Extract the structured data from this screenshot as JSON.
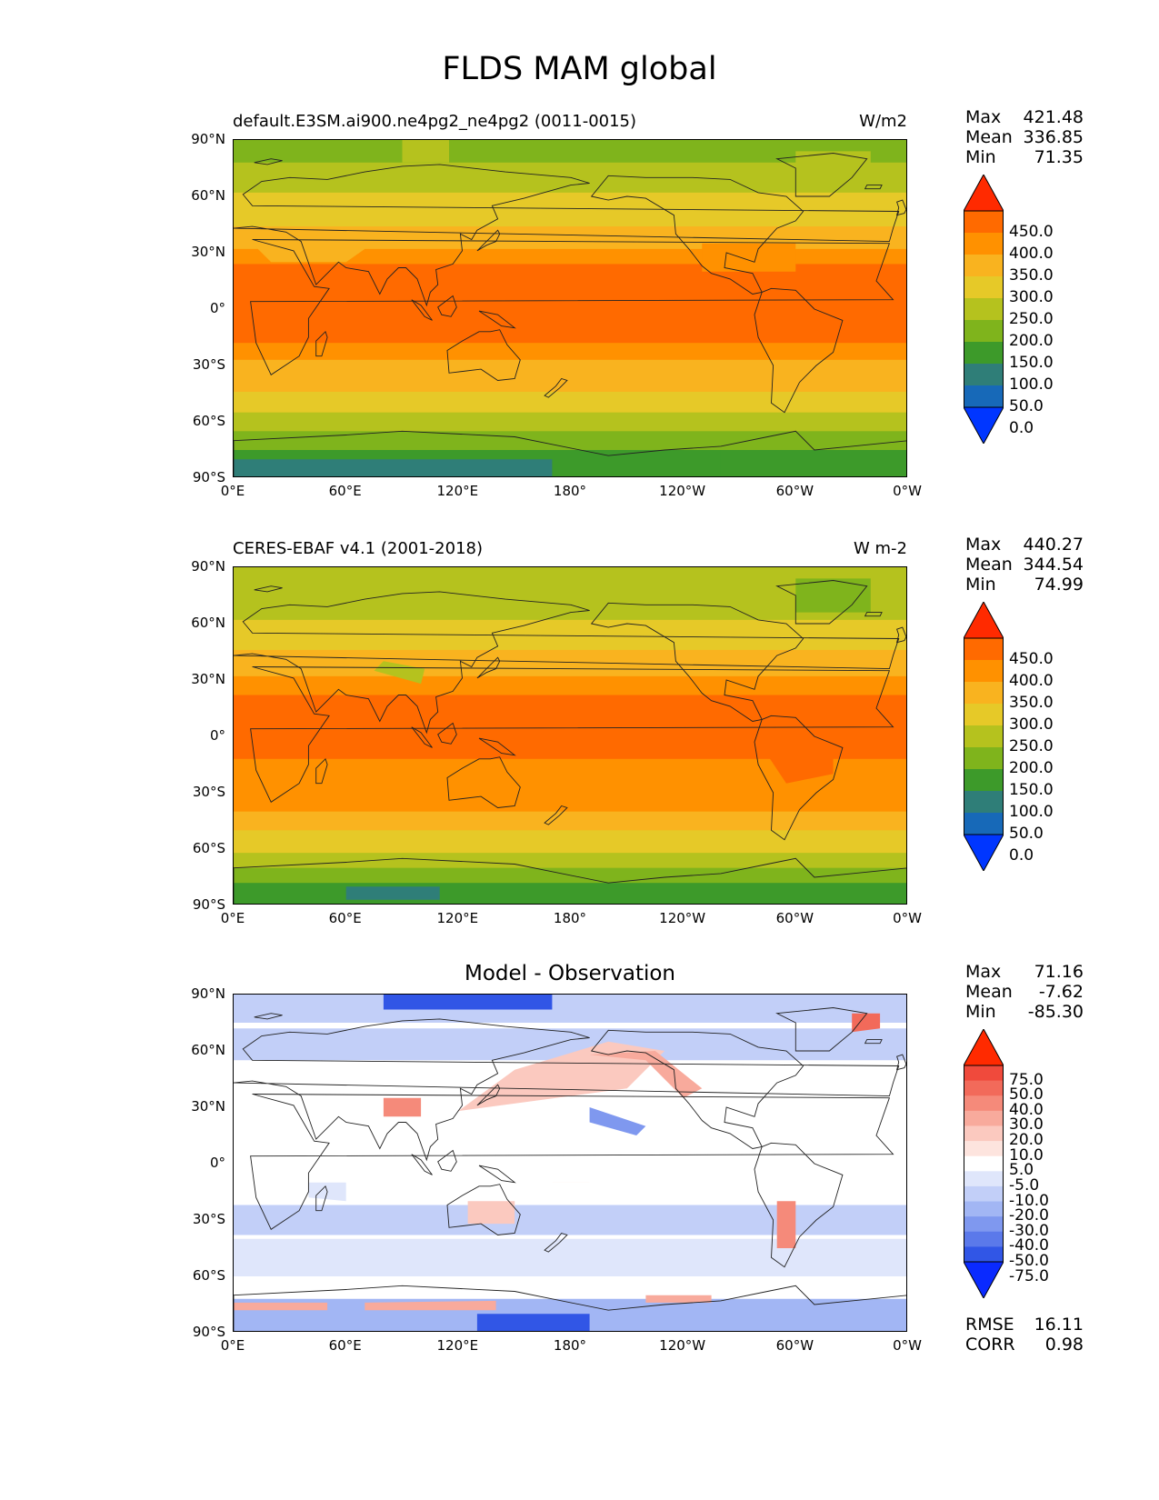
{
  "figure": {
    "title": "FLDS MAM global"
  },
  "panels": [
    {
      "id": "model",
      "title_left": "default.E3SM.ai900.ne4pg2_ne4pg2 (0011-0015)",
      "title_right": "W/m2",
      "title_center": "",
      "stats": {
        "max_label": "Max",
        "max": "421.48",
        "mean_label": "Mean",
        "mean": "336.85",
        "min_label": "Min",
        "min": "71.35"
      },
      "colorbar": {
        "labels": [
          "450.0",
          "400.0",
          "350.0",
          "300.0",
          "250.0",
          "200.0",
          "150.0",
          "100.0",
          "50.0",
          "0.0"
        ],
        "colors": [
          "#ff2a00",
          "#ff6a00",
          "#ff9100",
          "#f9b31f",
          "#e6c928",
          "#b5c21e",
          "#7fb41c",
          "#3d9a2a",
          "#2f7e78",
          "#1769b8",
          "#0036ff"
        ]
      }
    },
    {
      "id": "obs",
      "title_left": "CERES-EBAF v4.1 (2001-2018)",
      "title_right": "W m-2",
      "title_center": "",
      "stats": {
        "max_label": "Max",
        "max": "440.27",
        "mean_label": "Mean",
        "mean": "344.54",
        "min_label": "Min",
        "min": "74.99"
      },
      "colorbar": {
        "labels": [
          "450.0",
          "400.0",
          "350.0",
          "300.0",
          "250.0",
          "200.0",
          "150.0",
          "100.0",
          "50.0",
          "0.0"
        ],
        "colors": [
          "#ff2a00",
          "#ff6a00",
          "#ff9100",
          "#f9b31f",
          "#e6c928",
          "#b5c21e",
          "#7fb41c",
          "#3d9a2a",
          "#2f7e78",
          "#1769b8",
          "#0036ff"
        ]
      }
    },
    {
      "id": "diff",
      "title_left": "",
      "title_right": "",
      "title_center": "Model - Observation",
      "stats": {
        "max_label": "Max",
        "max": "71.16",
        "mean_label": "Mean",
        "mean": "-7.62",
        "min_label": "Min",
        "min": "-85.30"
      },
      "colorbar": {
        "labels": [
          "75.0",
          "50.0",
          "40.0",
          "30.0",
          "20.0",
          "10.0",
          "5.0",
          "-5.0",
          "-10.0",
          "-20.0",
          "-30.0",
          "-40.0",
          "-50.0",
          "-75.0"
        ],
        "colors": [
          "#ff2a00",
          "#f04a3c",
          "#f26a5a",
          "#f58a7a",
          "#f8aa9c",
          "#fbc9bf",
          "#fde4de",
          "#ffffff",
          "#dfe6fb",
          "#c2cff8",
          "#a2b6f4",
          "#7f98ef",
          "#5b79ea",
          "#3156e6",
          "#0a2aff"
        ]
      },
      "extra": {
        "rmse_label": "RMSE",
        "rmse": "16.11",
        "corr_label": "CORR",
        "corr": "0.98"
      }
    }
  ],
  "axes": {
    "lat_ticks": [
      "90°N",
      "60°N",
      "30°N",
      "0°",
      "30°S",
      "60°S",
      "90°S"
    ],
    "lon_ticks": [
      "0°E",
      "60°E",
      "120°E",
      "180°",
      "120°W",
      "60°W",
      "0°W"
    ]
  }
}
